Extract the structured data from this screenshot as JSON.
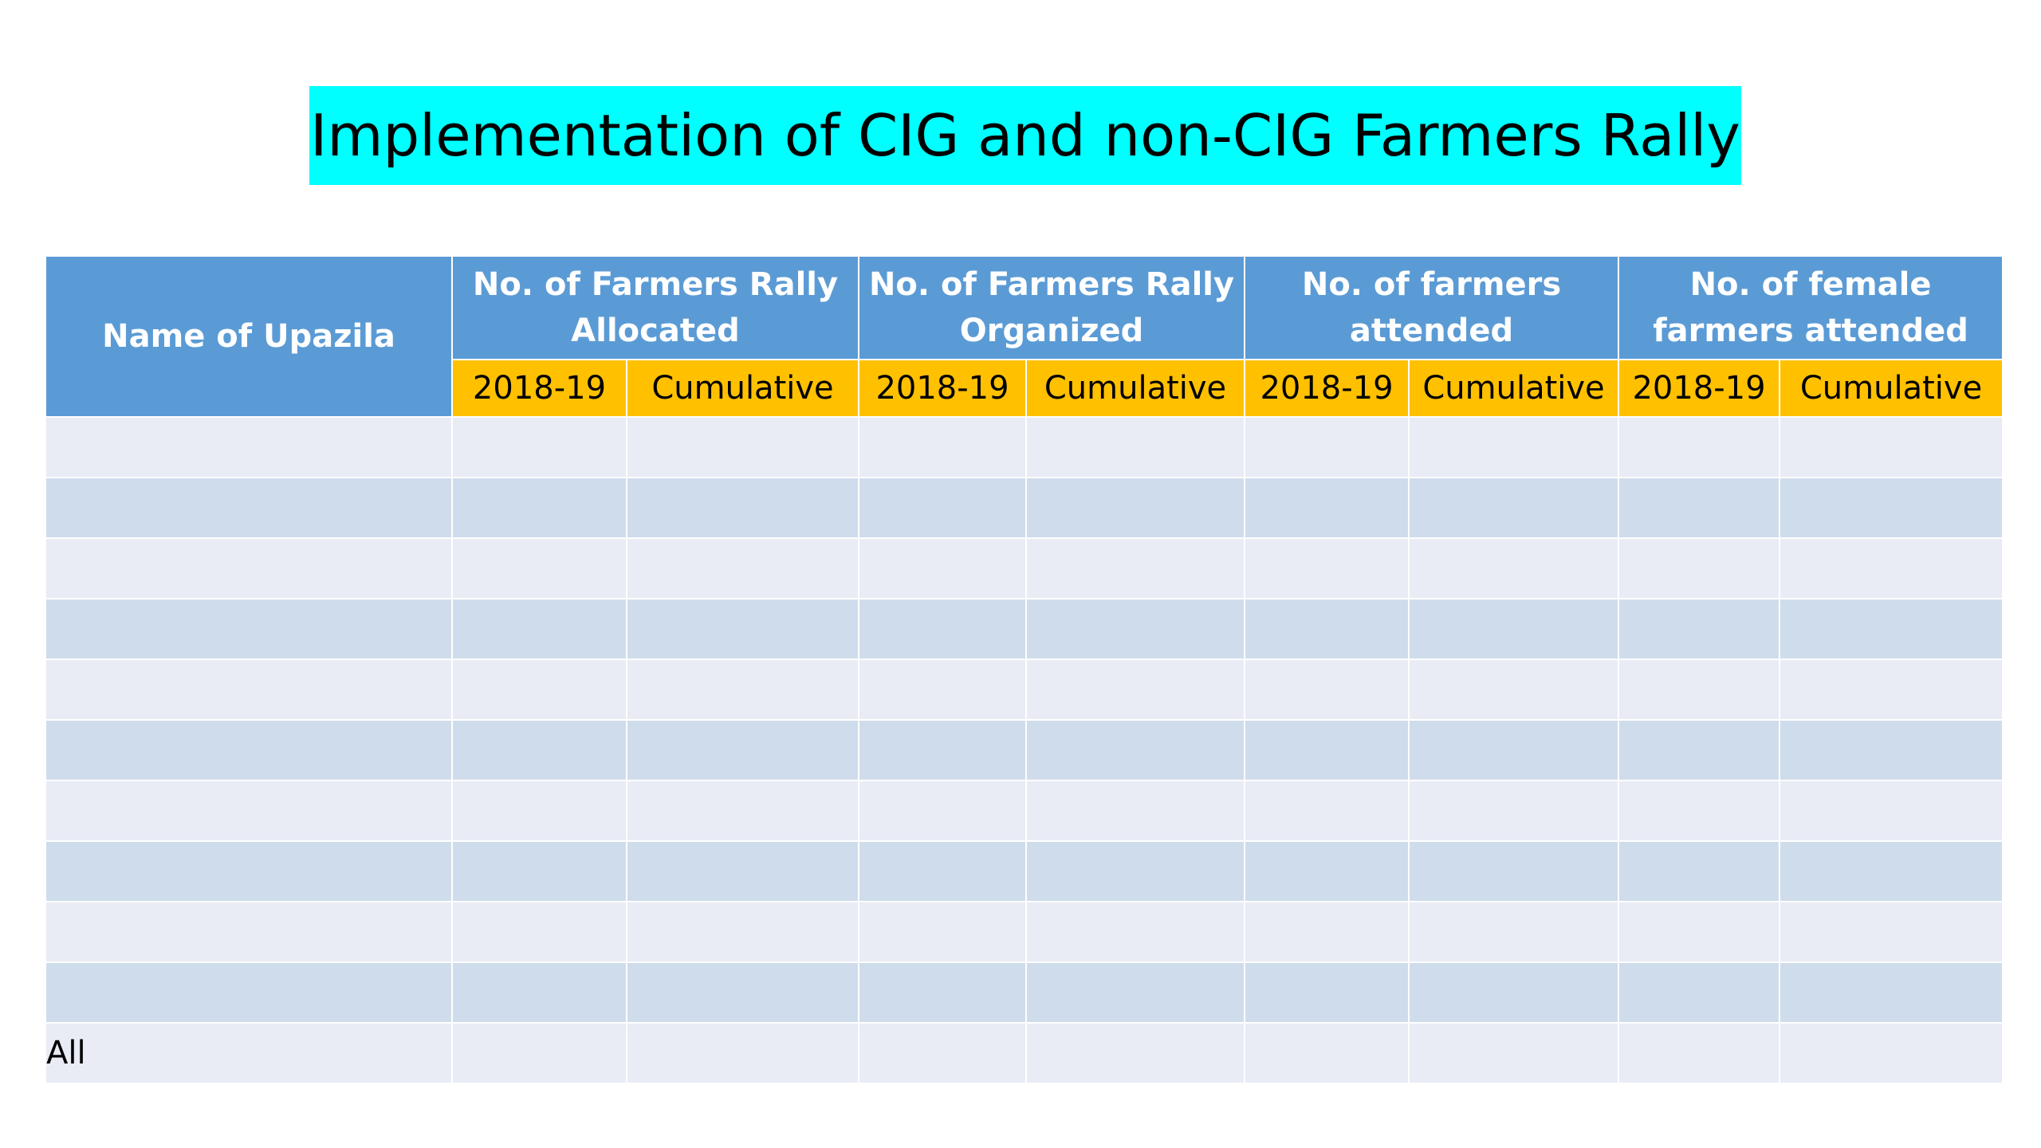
{
  "title": "Implementation of CIG and non-CIG Farmers Rally",
  "table": {
    "name_header": "Name of Upazila",
    "groups": [
      {
        "label": "No. of Farmers Rally Allocated",
        "sub": [
          "2018-19",
          "Cumulative"
        ]
      },
      {
        "label": "No. of Farmers Rally Organized",
        "sub": [
          "2018-19",
          "Cumulative"
        ]
      },
      {
        "label": "No. of farmers attended",
        "sub": [
          "2018-19",
          "Cumulative"
        ]
      },
      {
        "label": "No. of female farmers attended",
        "sub": [
          "2018-19",
          "Cumulative"
        ]
      }
    ],
    "rows": [
      {
        "name": "",
        "values": [
          "",
          "",
          "",
          "",
          "",
          "",
          "",
          ""
        ]
      },
      {
        "name": "",
        "values": [
          "",
          "",
          "",
          "",
          "",
          "",
          "",
          ""
        ]
      },
      {
        "name": "",
        "values": [
          "",
          "",
          "",
          "",
          "",
          "",
          "",
          ""
        ]
      },
      {
        "name": "",
        "values": [
          "",
          "",
          "",
          "",
          "",
          "",
          "",
          ""
        ]
      },
      {
        "name": "",
        "values": [
          "",
          "",
          "",
          "",
          "",
          "",
          "",
          ""
        ]
      },
      {
        "name": "",
        "values": [
          "",
          "",
          "",
          "",
          "",
          "",
          "",
          ""
        ]
      },
      {
        "name": "",
        "values": [
          "",
          "",
          "",
          "",
          "",
          "",
          "",
          ""
        ]
      },
      {
        "name": "",
        "values": [
          "",
          "",
          "",
          "",
          "",
          "",
          "",
          ""
        ]
      },
      {
        "name": "",
        "values": [
          "",
          "",
          "",
          "",
          "",
          "",
          "",
          ""
        ]
      },
      {
        "name": "",
        "values": [
          "",
          "",
          "",
          "",
          "",
          "",
          "",
          ""
        ]
      },
      {
        "name": "All",
        "values": [
          "",
          "",
          "",
          "",
          "",
          "",
          "",
          ""
        ]
      }
    ]
  },
  "colors": {
    "title_background": "#00ffff",
    "header_blue": "#5b9bd5",
    "subheader_gold": "#ffc000",
    "row_light": "#e9ebf5",
    "row_dark": "#cfdceb"
  }
}
